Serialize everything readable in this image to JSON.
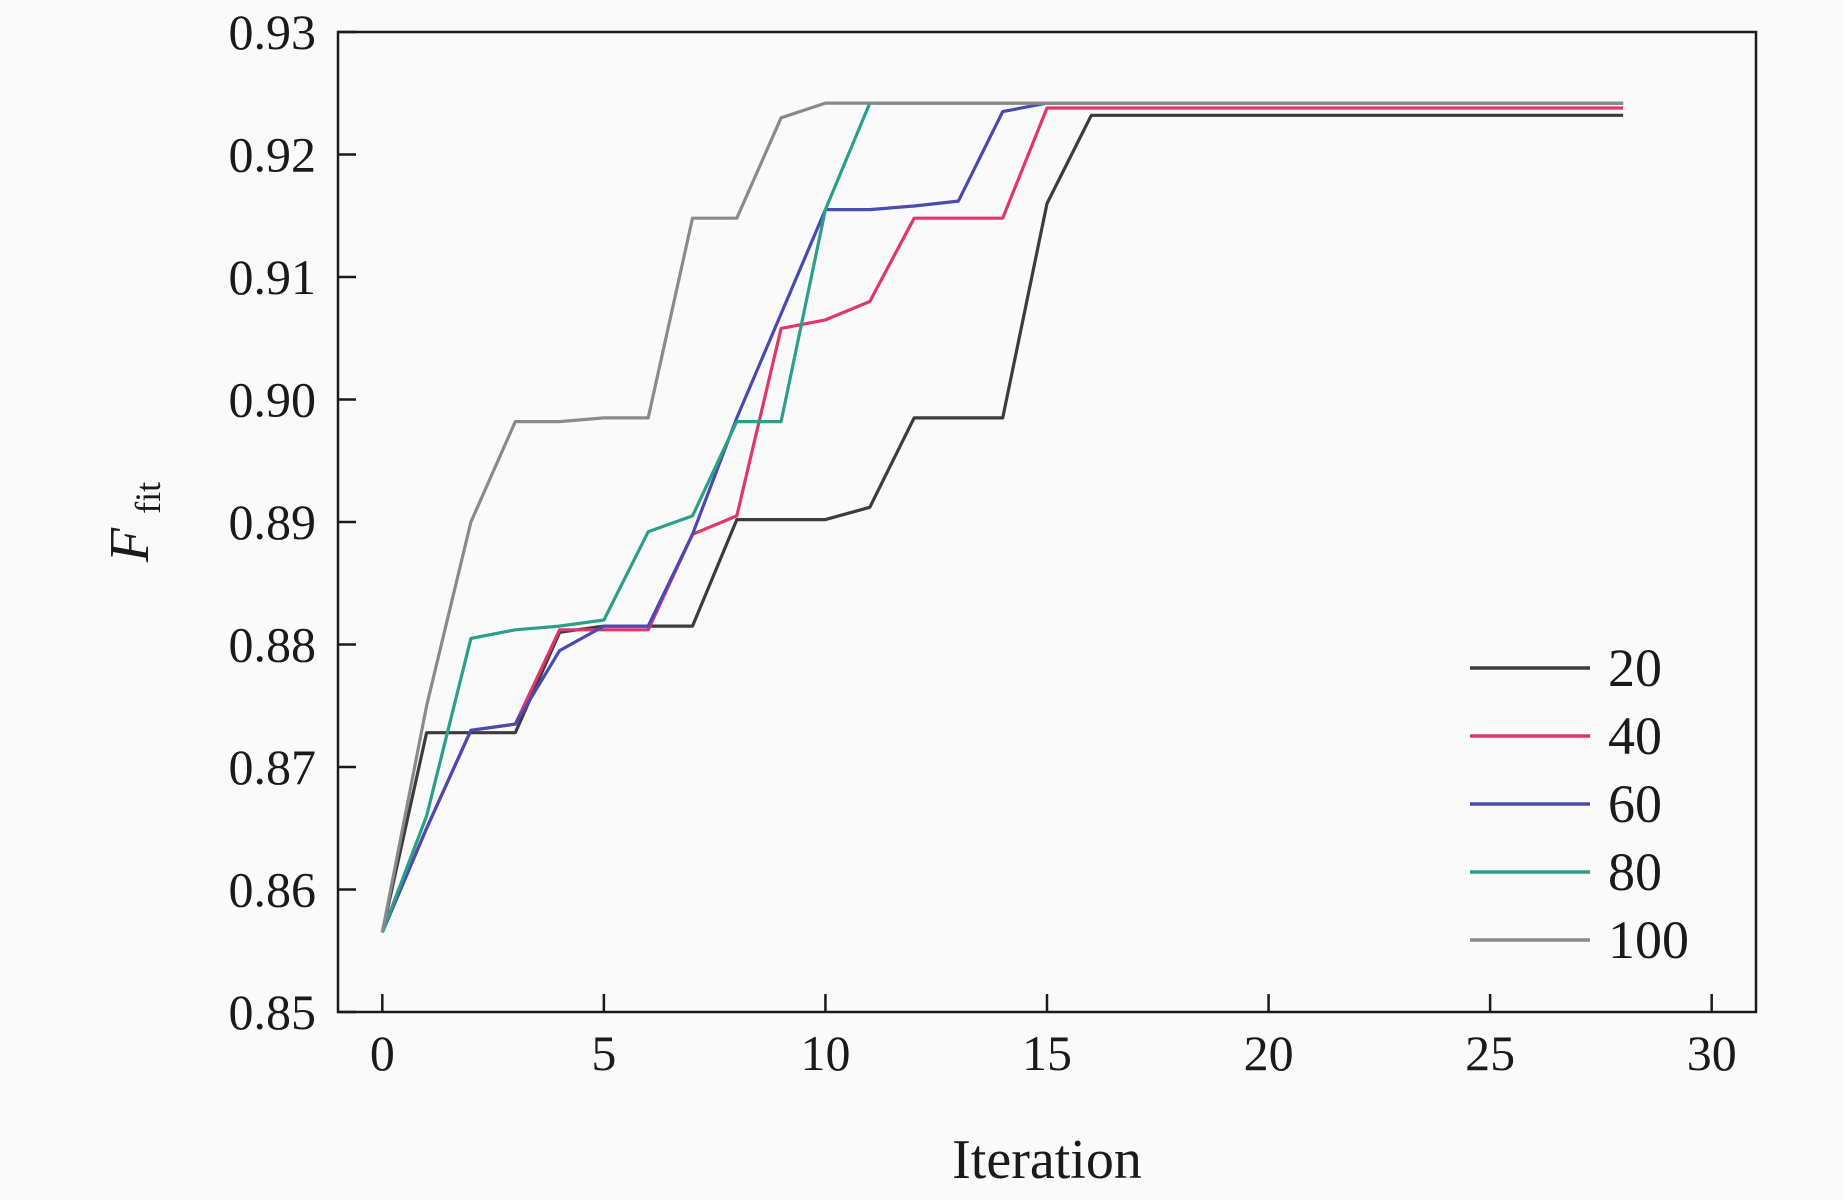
{
  "chart_data": {
    "type": "line",
    "title": "",
    "xlabel": "Iteration",
    "ylabel": {
      "main": "F",
      "sub": "fit"
    },
    "xlim": [
      -1,
      31
    ],
    "ylim": [
      0.85,
      0.93
    ],
    "xticks": [
      0,
      5,
      10,
      15,
      20,
      25,
      30
    ],
    "xtick_labels": [
      "0",
      "5",
      "10",
      "15",
      "20",
      "25",
      "30"
    ],
    "yticks": [
      0.85,
      0.86,
      0.87,
      0.88,
      0.89,
      0.9,
      0.91,
      0.92,
      0.93
    ],
    "ytick_labels": [
      "0.85",
      "0.86",
      "0.87",
      "0.88",
      "0.89",
      "0.90",
      "0.91",
      "0.92",
      "0.93"
    ],
    "grid": false,
    "legend_position": "bottom-right",
    "series": [
      {
        "name": "20",
        "color": "#3c3c3c",
        "points": [
          [
            0,
            0.8565
          ],
          [
            1,
            0.8728
          ],
          [
            2,
            0.8728
          ],
          [
            3,
            0.8728
          ],
          [
            4,
            0.881
          ],
          [
            5,
            0.8815
          ],
          [
            6,
            0.8815
          ],
          [
            7,
            0.8815
          ],
          [
            8,
            0.8902
          ],
          [
            9,
            0.8902
          ],
          [
            10,
            0.8902
          ],
          [
            11,
            0.8912
          ],
          [
            12,
            0.8985
          ],
          [
            13,
            0.8985
          ],
          [
            14,
            0.8985
          ],
          [
            15,
            0.916
          ],
          [
            16,
            0.9232
          ],
          [
            28,
            0.9232
          ]
        ]
      },
      {
        "name": "40",
        "color": "#e0356e",
        "points": [
          [
            0,
            0.8565
          ],
          [
            1,
            0.865
          ],
          [
            2,
            0.873
          ],
          [
            3,
            0.8735
          ],
          [
            4,
            0.8812
          ],
          [
            5,
            0.8812
          ],
          [
            6,
            0.8812
          ],
          [
            7,
            0.889
          ],
          [
            8,
            0.8905
          ],
          [
            9,
            0.9058
          ],
          [
            10,
            0.9065
          ],
          [
            11,
            0.908
          ],
          [
            12,
            0.9148
          ],
          [
            13,
            0.9148
          ],
          [
            14,
            0.9148
          ],
          [
            15,
            0.9238
          ],
          [
            28,
            0.9238
          ]
        ]
      },
      {
        "name": "60",
        "color": "#4a4ab0",
        "points": [
          [
            0,
            0.8565
          ],
          [
            1,
            0.865
          ],
          [
            2,
            0.873
          ],
          [
            3,
            0.8735
          ],
          [
            4,
            0.8795
          ],
          [
            5,
            0.8815
          ],
          [
            6,
            0.8815
          ],
          [
            7,
            0.889
          ],
          [
            8,
            0.8985
          ],
          [
            9,
            0.907
          ],
          [
            10,
            0.9155
          ],
          [
            11,
            0.9155
          ],
          [
            12,
            0.9158
          ],
          [
            13,
            0.9162
          ],
          [
            14,
            0.9235
          ],
          [
            15,
            0.9242
          ],
          [
            28,
            0.9242
          ]
        ]
      },
      {
        "name": "80",
        "color": "#2aa088",
        "points": [
          [
            0,
            0.8565
          ],
          [
            1,
            0.866
          ],
          [
            2,
            0.8805
          ],
          [
            3,
            0.8812
          ],
          [
            4,
            0.8815
          ],
          [
            5,
            0.882
          ],
          [
            6,
            0.8892
          ],
          [
            7,
            0.8905
          ],
          [
            8,
            0.8982
          ],
          [
            9,
            0.8982
          ],
          [
            10,
            0.9155
          ],
          [
            11,
            0.9242
          ],
          [
            28,
            0.9242
          ]
        ]
      },
      {
        "name": "100",
        "color": "#8a8a8a",
        "points": [
          [
            0,
            0.8565
          ],
          [
            1,
            0.875
          ],
          [
            2,
            0.89
          ],
          [
            3,
            0.8982
          ],
          [
            4,
            0.8982
          ],
          [
            5,
            0.8985
          ],
          [
            6,
            0.8985
          ],
          [
            7,
            0.9148
          ],
          [
            8,
            0.9148
          ],
          [
            9,
            0.923
          ],
          [
            10,
            0.9242
          ],
          [
            28,
            0.9242
          ]
        ]
      }
    ]
  }
}
